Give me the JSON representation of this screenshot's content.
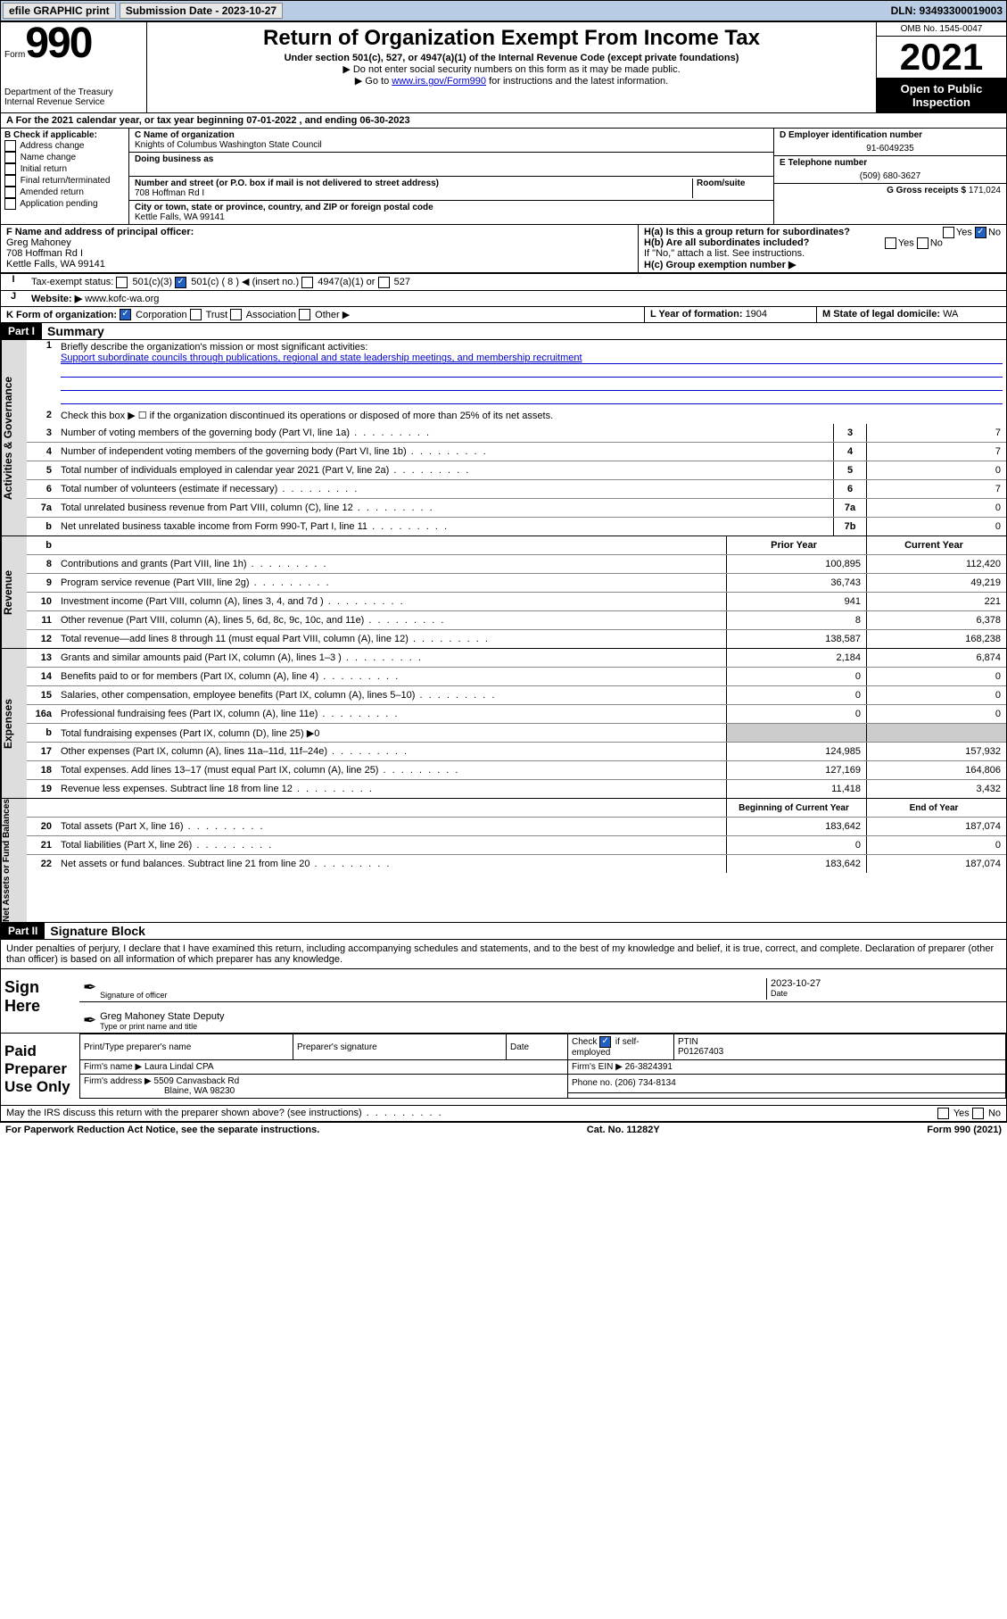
{
  "topbar": {
    "efile": "efile GRAPHIC print",
    "sub_label": "Submission Date - 2023-10-27",
    "dln": "DLN: 93493300019003"
  },
  "header": {
    "form_label": "Form",
    "form_num": "990",
    "dept": "Department of the Treasury",
    "irs": "Internal Revenue Service",
    "title": "Return of Organization Exempt From Income Tax",
    "sub1": "Under section 501(c), 527, or 4947(a)(1) of the Internal Revenue Code (except private foundations)",
    "sub2": "▶ Do not enter social security numbers on this form as it may be made public.",
    "sub3_pre": "▶ Go to ",
    "sub3_link": "www.irs.gov/Form990",
    "sub3_post": " for instructions and the latest information.",
    "omb": "OMB No. 1545-0047",
    "year": "2021",
    "inspect": "Open to Public Inspection"
  },
  "row_a": "A For the 2021 calendar year, or tax year beginning 07-01-2022   , and ending 06-30-2023",
  "col_b": {
    "hdr": "B Check if applicable:",
    "items": [
      "Address change",
      "Name change",
      "Initial return",
      "Final return/terminated",
      "Amended return",
      "Application pending"
    ]
  },
  "org": {
    "c_lbl": "C Name of organization",
    "name": "Knights of Columbus Washington State Council",
    "dba_lbl": "Doing business as",
    "addr_lbl": "Number and street (or P.O. box if mail is not delivered to street address)",
    "room_lbl": "Room/suite",
    "addr": "708 Hoffman Rd I",
    "city_lbl": "City or town, state or province, country, and ZIP or foreign postal code",
    "city": "Kettle Falls, WA  99141",
    "f_lbl": "F Name and address of principal officer:",
    "f_name": "Greg Mahoney",
    "f_addr": "708 Hoffman Rd I",
    "f_city": "Kettle Falls, WA  99141"
  },
  "col_d": {
    "d_lbl": "D Employer identification number",
    "ein": "91-6049235",
    "e_lbl": "E Telephone number",
    "phone": "(509) 680-3627",
    "g_lbl": "G Gross receipts $ ",
    "gross": "171,024",
    "ha_lbl": "H(a)  Is this a group return for subordinates?",
    "hb_lbl": "H(b)  Are all subordinates included?",
    "hb_note": "If \"No,\" attach a list. See instructions.",
    "hc_lbl": "H(c)  Group exemption number ▶"
  },
  "row_i": {
    "lbl": "Tax-exempt status:",
    "c3": "501(c)(3)",
    "c": "501(c) ( 8 ) ◀ (insert no.)",
    "a1": "4947(a)(1) or",
    "s527": "527"
  },
  "row_j": {
    "lbl": "Website: ▶",
    "val": "www.kofc-wa.org"
  },
  "row_k": {
    "lbl": "K Form of organization:",
    "corp": "Corporation",
    "trust": "Trust",
    "assoc": "Association",
    "other": "Other ▶",
    "l_lbl": "L Year of formation: ",
    "l_val": "1904",
    "m_lbl": "M State of legal domicile: ",
    "m_val": "WA"
  },
  "part1": {
    "hdr": "Part I",
    "title": "Summary",
    "q1": "Briefly describe the organization's mission or most significant activities:",
    "mission": "Support subordinate councils through publications, regional and state leadership meetings, and membership recruitment",
    "q2": "Check this box ▶ ☐  if the organization discontinued its operations or disposed of more than 25% of its net assets."
  },
  "gov_lines": [
    {
      "n": "3",
      "t": "Number of voting members of the governing body (Part VI, line 1a)",
      "box": "3",
      "v": "7"
    },
    {
      "n": "4",
      "t": "Number of independent voting members of the governing body (Part VI, line 1b)",
      "box": "4",
      "v": "7"
    },
    {
      "n": "5",
      "t": "Total number of individuals employed in calendar year 2021 (Part V, line 2a)",
      "box": "5",
      "v": "0"
    },
    {
      "n": "6",
      "t": "Total number of volunteers (estimate if necessary)",
      "box": "6",
      "v": "7"
    },
    {
      "n": "7a",
      "t": "Total unrelated business revenue from Part VIII, column (C), line 12",
      "box": "7a",
      "v": "0"
    },
    {
      "n": "b",
      "t": "Net unrelated business taxable income from Form 990-T, Part I, line 11",
      "box": "7b",
      "v": "0"
    }
  ],
  "two_col_hdr": {
    "prior": "Prior Year",
    "current": "Current Year"
  },
  "revenue": [
    {
      "n": "8",
      "t": "Contributions and grants (Part VIII, line 1h)",
      "p": "100,895",
      "c": "112,420"
    },
    {
      "n": "9",
      "t": "Program service revenue (Part VIII, line 2g)",
      "p": "36,743",
      "c": "49,219"
    },
    {
      "n": "10",
      "t": "Investment income (Part VIII, column (A), lines 3, 4, and 7d )",
      "p": "941",
      "c": "221"
    },
    {
      "n": "11",
      "t": "Other revenue (Part VIII, column (A), lines 5, 6d, 8c, 9c, 10c, and 11e)",
      "p": "8",
      "c": "6,378"
    },
    {
      "n": "12",
      "t": "Total revenue—add lines 8 through 11 (must equal Part VIII, column (A), line 12)",
      "p": "138,587",
      "c": "168,238"
    }
  ],
  "expenses": [
    {
      "n": "13",
      "t": "Grants and similar amounts paid (Part IX, column (A), lines 1–3 )",
      "p": "2,184",
      "c": "6,874"
    },
    {
      "n": "14",
      "t": "Benefits paid to or for members (Part IX, column (A), line 4)",
      "p": "0",
      "c": "0"
    },
    {
      "n": "15",
      "t": "Salaries, other compensation, employee benefits (Part IX, column (A), lines 5–10)",
      "p": "0",
      "c": "0"
    },
    {
      "n": "16a",
      "t": "Professional fundraising fees (Part IX, column (A), line 11e)",
      "p": "0",
      "c": "0"
    },
    {
      "n": "b",
      "t": "Total fundraising expenses (Part IX, column (D), line 25) ▶0",
      "p": "",
      "c": "",
      "shade": true
    },
    {
      "n": "17",
      "t": "Other expenses (Part IX, column (A), lines 11a–11d, 11f–24e)",
      "p": "124,985",
      "c": "157,932"
    },
    {
      "n": "18",
      "t": "Total expenses. Add lines 13–17 (must equal Part IX, column (A), line 25)",
      "p": "127,169",
      "c": "164,806"
    },
    {
      "n": "19",
      "t": "Revenue less expenses. Subtract line 18 from line 12",
      "p": "11,418",
      "c": "3,432"
    }
  ],
  "net_hdr": {
    "beg": "Beginning of Current Year",
    "end": "End of Year"
  },
  "net": [
    {
      "n": "20",
      "t": "Total assets (Part X, line 16)",
      "p": "183,642",
      "c": "187,074"
    },
    {
      "n": "21",
      "t": "Total liabilities (Part X, line 26)",
      "p": "0",
      "c": "0"
    },
    {
      "n": "22",
      "t": "Net assets or fund balances. Subtract line 21 from line 20",
      "p": "183,642",
      "c": "187,074"
    }
  ],
  "part2": {
    "hdr": "Part II",
    "title": "Signature Block",
    "decl": "Under penalties of perjury, I declare that I have examined this return, including accompanying schedules and statements, and to the best of my knowledge and belief, it is true, correct, and complete. Declaration of preparer (other than officer) is based on all information of which preparer has any knowledge."
  },
  "sign": {
    "here": "Sign Here",
    "sig_lbl": "Signature of officer",
    "date_lbl": "Date",
    "date": "2023-10-27",
    "name": "Greg Mahoney  State Deputy",
    "name_lbl": "Type or print name and title"
  },
  "paid": {
    "hdr": "Paid Preparer Use Only",
    "h1": "Print/Type preparer's name",
    "h2": "Preparer's signature",
    "h3": "Date",
    "h4_pre": "Check",
    "h4_post": "if self-employed",
    "h5": "PTIN",
    "ptin": "P01267403",
    "firm_lbl": "Firm's name      ▶",
    "firm": "Laura Lindal CPA",
    "ein_lbl": "Firm's EIN ▶",
    "ein": "26-3824391",
    "addr_lbl": "Firm's address ▶",
    "addr1": "5509 Canvasback Rd",
    "addr2": "Blaine, WA  98230",
    "phone_lbl": "Phone no. ",
    "phone": "(206) 734-8134",
    "discuss": "May the IRS discuss this return with the preparer shown above? (see instructions)"
  },
  "footer": {
    "pra": "For Paperwork Reduction Act Notice, see the separate instructions.",
    "cat": "Cat. No. 11282Y",
    "form": "Form 990 (2021)"
  },
  "yes": "Yes",
  "no": "No",
  "vtabs": {
    "gov": "Activities & Governance",
    "rev": "Revenue",
    "exp": "Expenses",
    "net": "Net Assets or Fund Balances"
  }
}
